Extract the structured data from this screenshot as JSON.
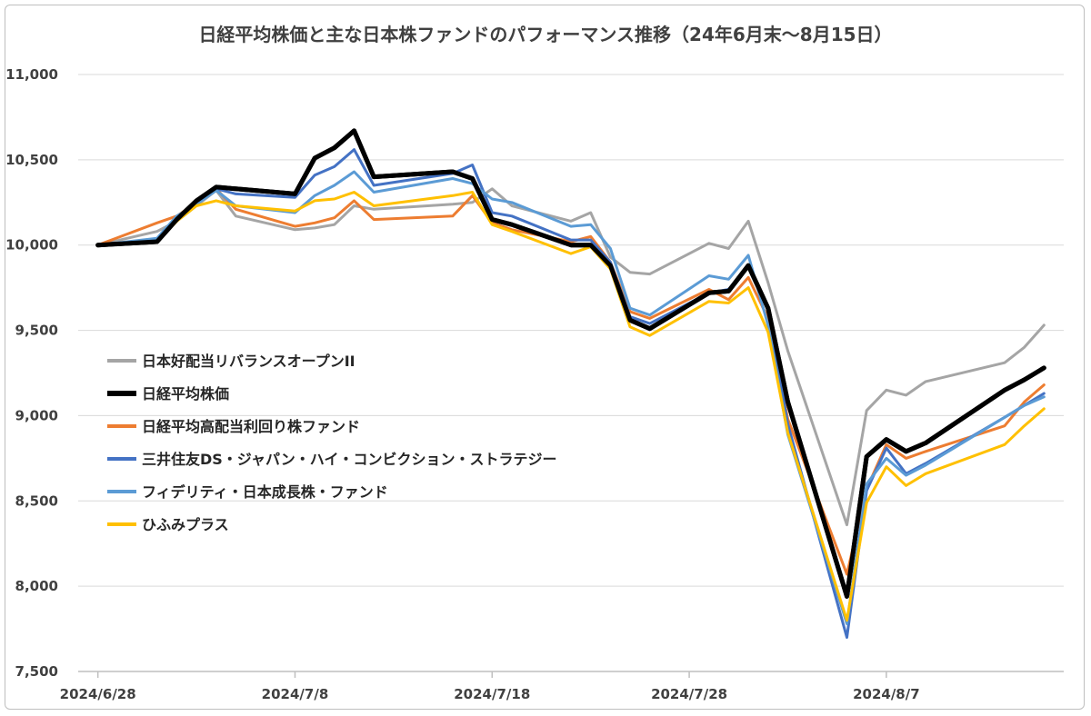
{
  "chart_data": {
    "type": "line",
    "title": "日経平均株価と主な日本株ファンドのパフォーマンス推移（24年6月末～8月15日）",
    "xlabel": "",
    "ylabel": "",
    "ylim": [
      7500,
      11000
    ],
    "yticks": [
      "7,500",
      "8,000",
      "8,500",
      "9,000",
      "9,500",
      "10,000",
      "10,500",
      "11,000"
    ],
    "ytick_values": [
      7500,
      8000,
      8500,
      9000,
      9500,
      10000,
      10500,
      11000
    ],
    "xlim": [
      "2024-06-27",
      "2024-08-16"
    ],
    "xticks": [
      "2024/6/28",
      "2024/7/8",
      "2024/7/18",
      "2024/7/28",
      "2024/8/7"
    ],
    "xtick_dates": [
      "2024-06-28",
      "2024-07-08",
      "2024-07-18",
      "2024-07-28",
      "2024-08-07"
    ],
    "grid": "horizontal",
    "legend_position": "left",
    "x": [
      "2024-06-28",
      "2024-07-01",
      "2024-07-02",
      "2024-07-03",
      "2024-07-04",
      "2024-07-05",
      "2024-07-08",
      "2024-07-09",
      "2024-07-10",
      "2024-07-11",
      "2024-07-12",
      "2024-07-16",
      "2024-07-17",
      "2024-07-18",
      "2024-07-19",
      "2024-07-22",
      "2024-07-23",
      "2024-07-24",
      "2024-07-25",
      "2024-07-26",
      "2024-07-29",
      "2024-07-30",
      "2024-07-31",
      "2024-08-01",
      "2024-08-02",
      "2024-08-05",
      "2024-08-06",
      "2024-08-07",
      "2024-08-08",
      "2024-08-09",
      "2024-08-13",
      "2024-08-14",
      "2024-08-15"
    ],
    "series": [
      {
        "name": "日本好配当リバランスオープンII",
        "color": "#a5a5a5",
        "width": 3,
        "values": [
          10000,
          10080,
          10140,
          10230,
          10320,
          10170,
          10090,
          10100,
          10120,
          10230,
          10210,
          10240,
          10250,
          10330,
          10230,
          10140,
          10190,
          9930,
          9840,
          9830,
          10010,
          9980,
          10140,
          9780,
          9380,
          8360,
          9030,
          9150,
          9120,
          9200,
          9310,
          9400,
          9530
        ]
      },
      {
        "name": "日経平均株価",
        "color": "#000000",
        "width": 5,
        "values": [
          10000,
          10020,
          10150,
          10260,
          10340,
          10330,
          10300,
          10510,
          10570,
          10670,
          10400,
          10430,
          10390,
          10150,
          10120,
          10000,
          10000,
          9880,
          9560,
          9510,
          9720,
          9730,
          9880,
          9630,
          9080,
          7940,
          8760,
          8860,
          8790,
          8840,
          9150,
          9210,
          9280
        ]
      },
      {
        "name": "日経平均高配当利回り株ファンド",
        "color": "#ed7d31",
        "width": 3,
        "values": [
          10000,
          10130,
          10170,
          10250,
          10330,
          10210,
          10110,
          10130,
          10160,
          10260,
          10150,
          10170,
          10290,
          10130,
          10090,
          10020,
          10050,
          9900,
          9610,
          9570,
          9740,
          9680,
          9810,
          9570,
          8980,
          8070,
          8570,
          8830,
          8750,
          8790,
          8940,
          9080,
          9180
        ]
      },
      {
        "name": "三井住友DS・ジャパン・ハイ・コンビクション・ストラテジー",
        "color": "#4472c4",
        "width": 3,
        "values": [
          10000,
          10030,
          10160,
          10260,
          10330,
          10300,
          10280,
          10410,
          10460,
          10560,
          10350,
          10420,
          10470,
          10190,
          10170,
          10030,
          10030,
          9900,
          9580,
          9540,
          9720,
          9740,
          9880,
          9630,
          8950,
          7700,
          8560,
          8810,
          8660,
          8720,
          8990,
          9060,
          9130
        ]
      },
      {
        "name": "フィデリティ・日本成長株・ファンド",
        "color": "#5b9bd5",
        "width": 3,
        "values": [
          10000,
          10040,
          10170,
          10240,
          10320,
          10230,
          10190,
          10290,
          10350,
          10430,
          10310,
          10390,
          10360,
          10270,
          10250,
          10110,
          10120,
          9980,
          9630,
          9590,
          9820,
          9800,
          9940,
          9530,
          8890,
          7780,
          8600,
          8750,
          8650,
          8710,
          8990,
          9060,
          9110
        ]
      },
      {
        "name": "ひふみプラス",
        "color": "#ffc000",
        "width": 3,
        "values": [
          10000,
          10020,
          10140,
          10230,
          10260,
          10230,
          10200,
          10260,
          10270,
          10310,
          10230,
          10290,
          10310,
          10120,
          10080,
          9950,
          9990,
          9860,
          9520,
          9470,
          9670,
          9660,
          9750,
          9490,
          8900,
          7800,
          8490,
          8700,
          8590,
          8660,
          8830,
          8940,
          9040
        ]
      }
    ]
  }
}
